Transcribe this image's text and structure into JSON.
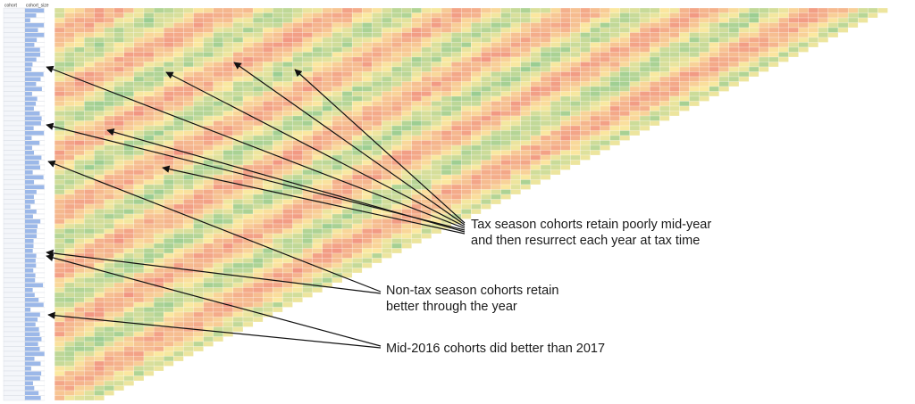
{
  "chart_data": {
    "type": "heatmap",
    "title": "",
    "layout": "triangular cohort retention table (newest cohorts have fewer periods)",
    "columns": {
      "header_left": [
        "cohort",
        "cohort_size"
      ],
      "period_start": 1,
      "period_end": 85
    },
    "rows_count": 80,
    "first_row_periods": 85,
    "cell_format": "percent",
    "color_scale": {
      "low": "#f08a7e",
      "mid": "#fbe9a0",
      "high": "#6cc08b"
    },
    "size_bar_color": "#9cb8e8",
    "notes": "Individual cell values are too small to read at this resolution; rows use the scale low=red, mid=yellow, high=green."
  },
  "annotations": [
    {
      "lines": [
        "Tax season cohorts retain poorly mid-year",
        "and then resurrect each year at tax time"
      ]
    },
    {
      "lines": [
        "Non-tax season cohorts retain",
        "better through the year"
      ]
    },
    {
      "lines": [
        "Mid-2016 cohorts did better than 2017"
      ]
    }
  ]
}
